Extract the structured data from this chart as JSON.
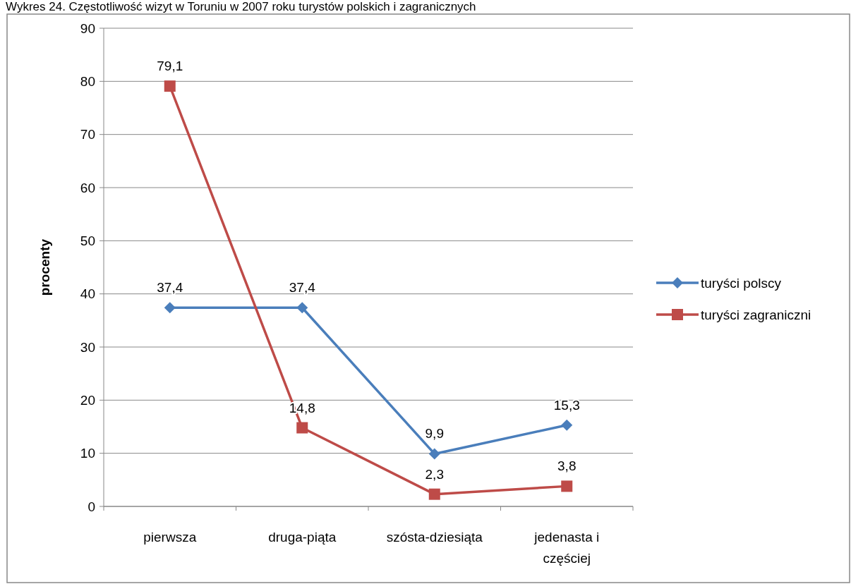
{
  "chart_data": {
    "type": "line",
    "title": "Wykres 24. Częstotliwość wizyt w Toruniu w 2007 roku turystów polskich i zagranicznych",
    "ylabel": "procenty",
    "categories": [
      "pierwsza",
      "druga-piąta",
      "szósta-dziesiąta",
      "jedenasta i częściej"
    ],
    "series": [
      {
        "name": "turyści polscy",
        "color": "#4a7ebb",
        "marker": "diamond",
        "values": [
          37.4,
          37.4,
          9.9,
          15.3
        ],
        "value_labels": [
          "37,4",
          "37,4",
          "9,9",
          "15,3"
        ]
      },
      {
        "name": "turyści zagraniczni",
        "color": "#be4b48",
        "marker": "square",
        "values": [
          79.1,
          14.8,
          2.3,
          3.8
        ],
        "value_labels": [
          "79,1",
          "14,8",
          "2,3",
          "3,8"
        ]
      }
    ],
    "ylim": [
      0,
      90
    ],
    "yticks": [
      0,
      10,
      20,
      30,
      40,
      50,
      60,
      70,
      80,
      90
    ],
    "grid": "y",
    "legend": "right"
  }
}
